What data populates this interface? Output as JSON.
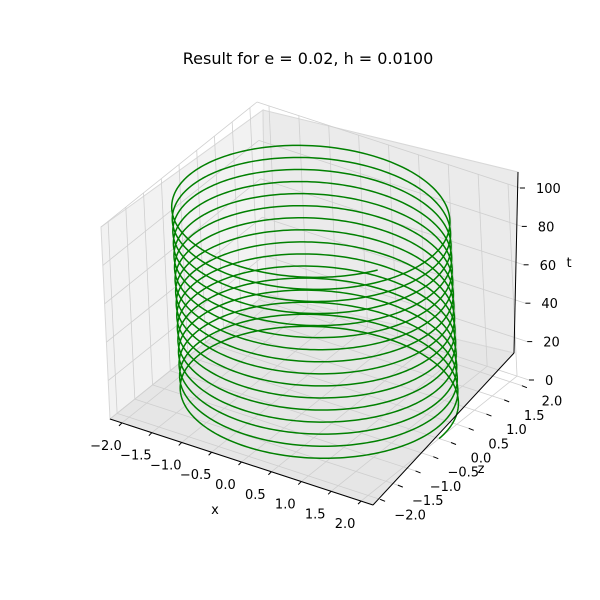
{
  "chart_data": {
    "type": "line3d",
    "title": "Result for e = 0.02, h = 0.0100",
    "xlabel": "x",
    "ylabel": "z",
    "zlabel": "t",
    "xticks": [
      "−2.0",
      "−1.5",
      "−1.0",
      "−0.5",
      "0.0",
      "0.5",
      "1.0",
      "1.5",
      "2.0"
    ],
    "yticks": [
      "−2.0",
      "−1.5",
      "−1.0",
      "−0.5",
      "0.0",
      "0.5",
      "1.0",
      "1.5",
      "2.0"
    ],
    "zticks": [
      "0",
      "20",
      "40",
      "60",
      "80",
      "100"
    ],
    "xlim": [
      -2.2,
      2.2
    ],
    "ylim": [
      -2.2,
      2.2
    ],
    "zlim": [
      0,
      100
    ],
    "grid": true,
    "series": [
      {
        "x_formula": "2*cos(t)",
        "z_formula": "2*sin(t)",
        "t_range": [
          0,
          100
        ],
        "color": "#008000"
      }
    ]
  }
}
